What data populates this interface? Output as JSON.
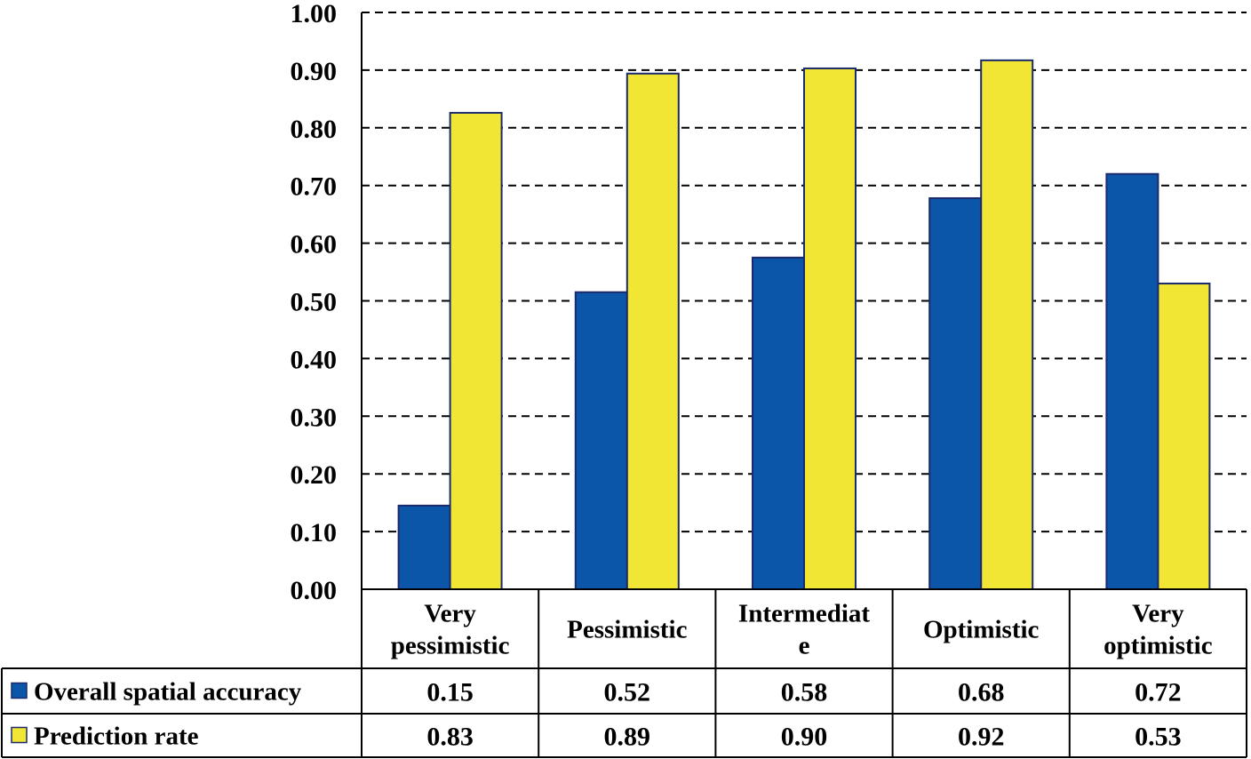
{
  "chart_data": {
    "type": "bar",
    "categories": [
      [
        "Very",
        "pessimistic"
      ],
      [
        "Pessimistic"
      ],
      [
        "Intermediat",
        "e"
      ],
      [
        "Optimistic"
      ],
      [
        "Very",
        "optimistic"
      ]
    ],
    "series": [
      {
        "name": "Overall spatial accuracy",
        "color": "#0b56a8",
        "values": [
          0.145,
          0.515,
          0.575,
          0.678,
          0.72
        ],
        "labels": [
          "0.15",
          "0.52",
          "0.58",
          "0.68",
          "0.72"
        ]
      },
      {
        "name": "Prediction rate",
        "color": "#f2e634",
        "values": [
          0.826,
          0.894,
          0.903,
          0.917,
          0.53
        ],
        "labels": [
          "0.83",
          "0.89",
          "0.90",
          "0.92",
          "0.53"
        ]
      }
    ],
    "ylim": [
      0,
      1
    ],
    "yticks": [
      "0.00",
      "0.10",
      "0.20",
      "0.30",
      "0.40",
      "0.50",
      "0.60",
      "0.70",
      "0.80",
      "0.90",
      "1.00"
    ],
    "grid": "dashed horizontal",
    "bar_outline_color": "#1a2a6c",
    "data_table": true
  }
}
